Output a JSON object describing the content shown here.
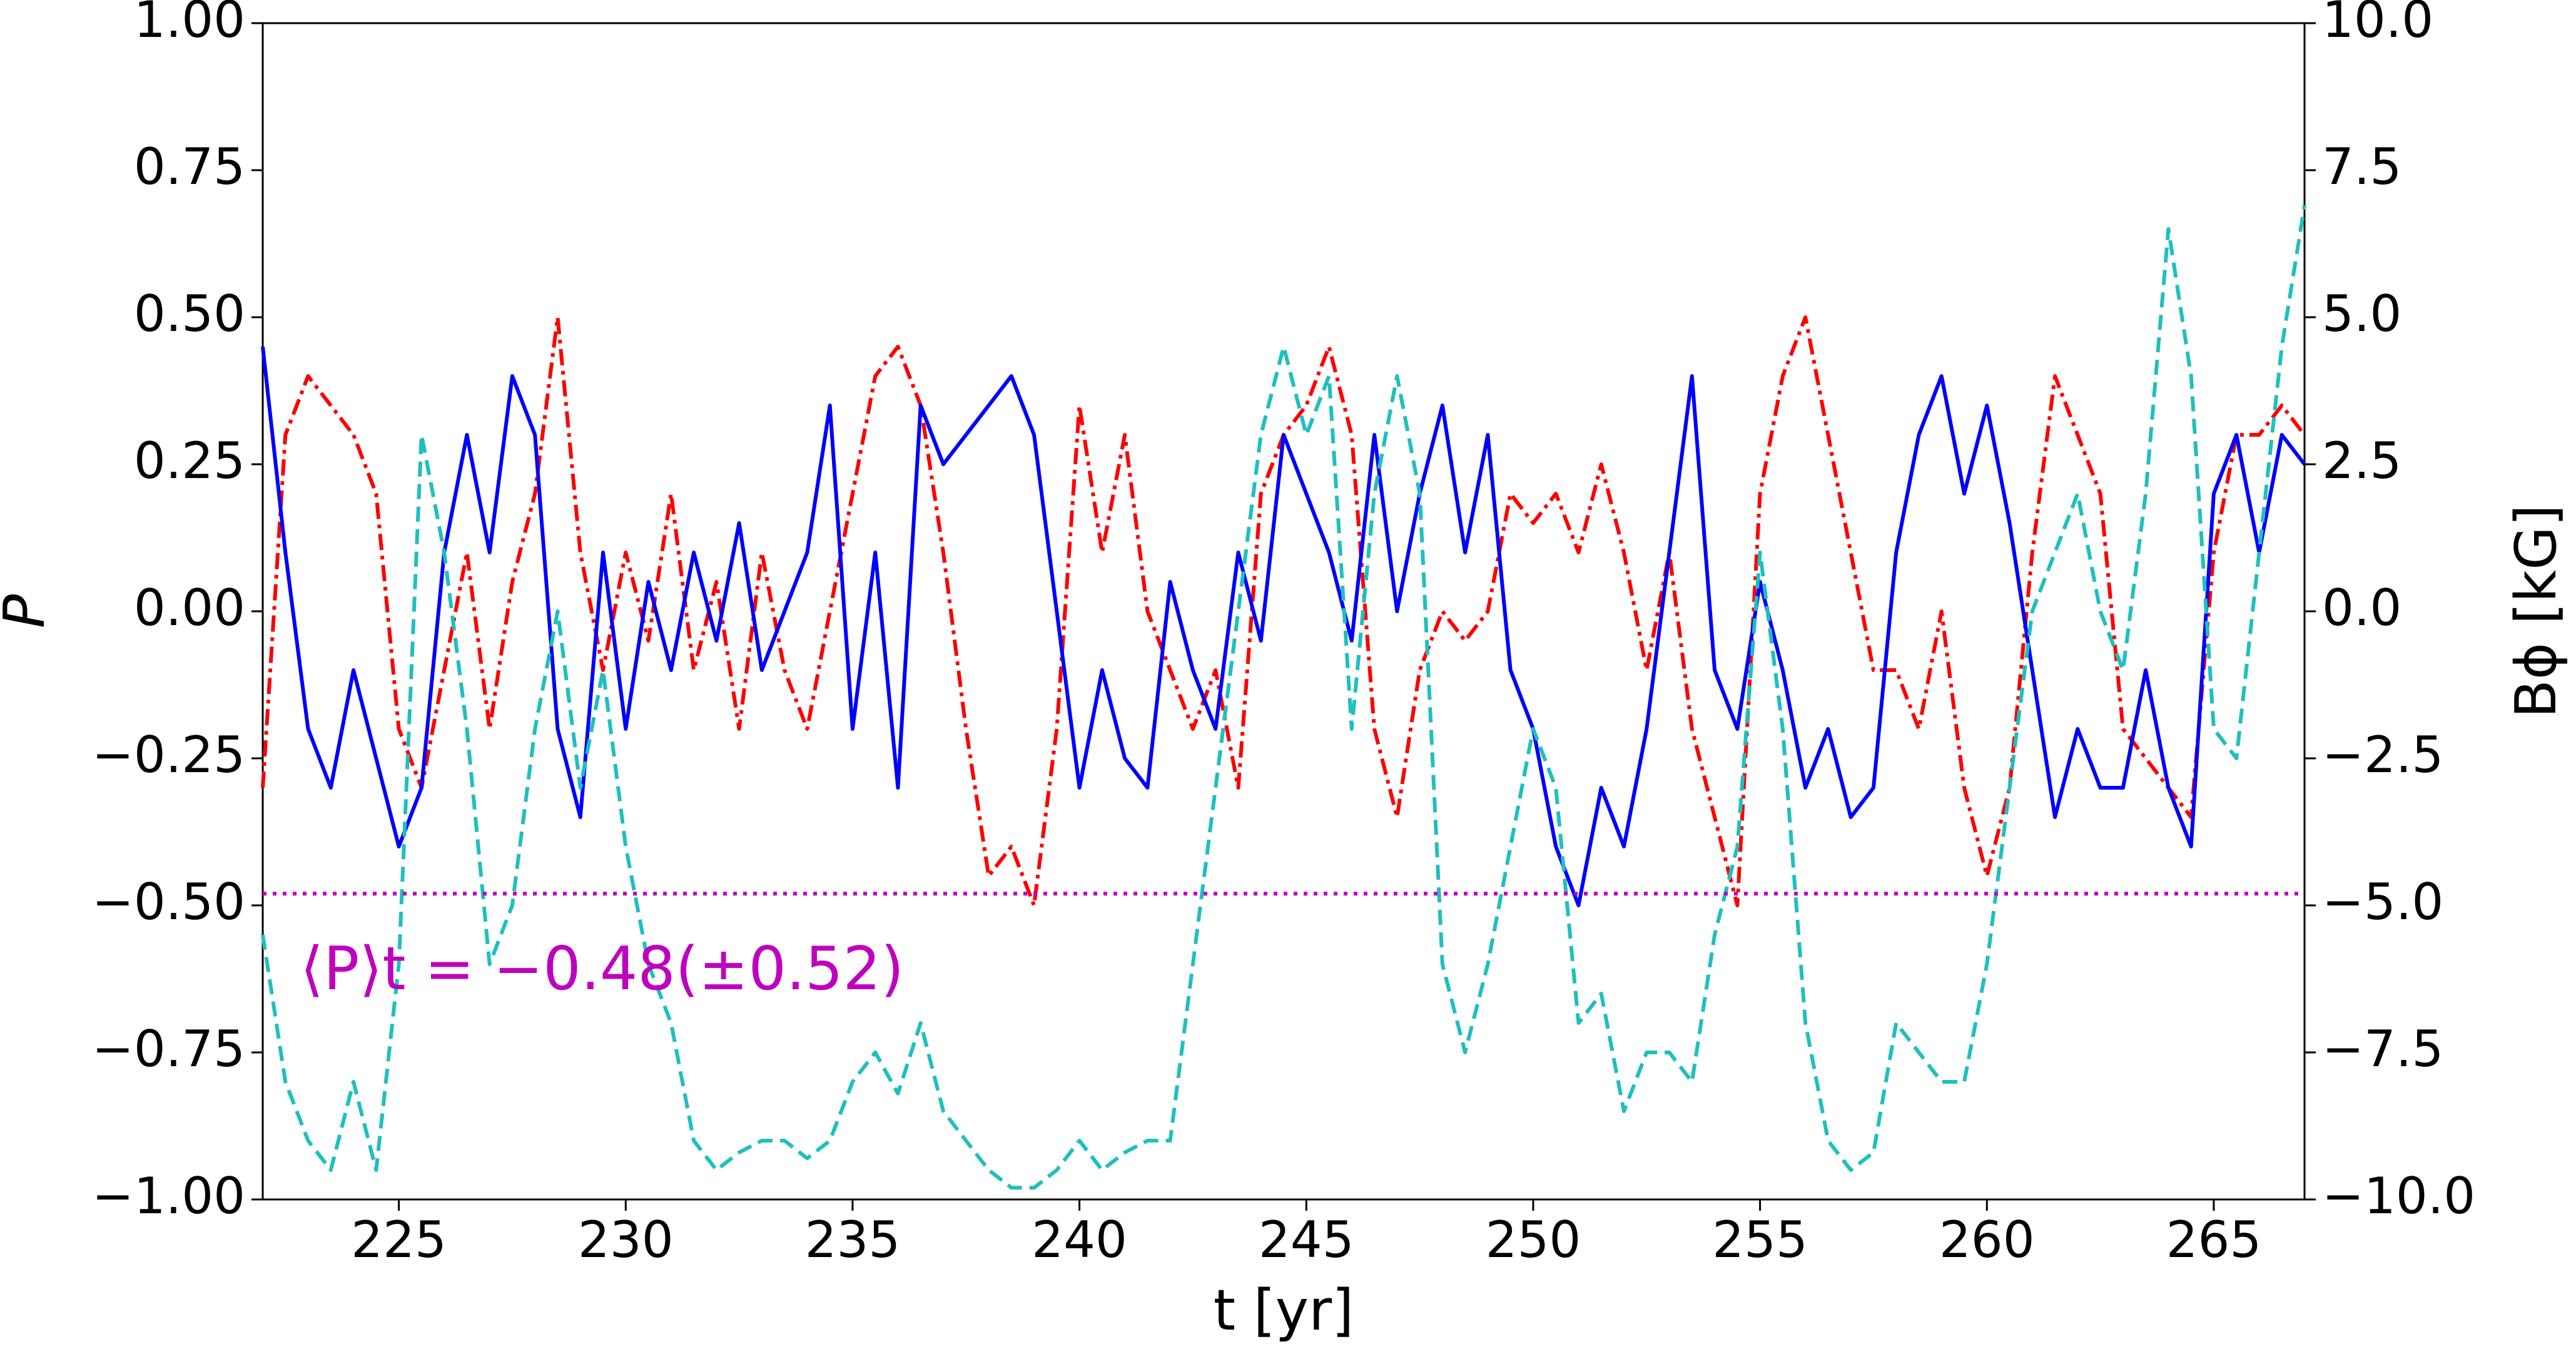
{
  "chart_data": {
    "type": "line",
    "xlabel": "t [yr]",
    "ylabel": "P",
    "y2label": "Bϕ [kG]",
    "annotation": "⟨P⟩t = −0.48(±0.52)",
    "hline": {
      "value": -0.48,
      "color": "#bf00bf",
      "linestyle": "dotted"
    },
    "xlim": [
      222,
      267
    ],
    "ylim": [
      -1,
      1
    ],
    "y2lim": [
      -10,
      10
    ],
    "xticks": [
      225,
      230,
      235,
      240,
      245,
      250,
      255,
      260,
      265
    ],
    "yticks": [
      {
        "value": -1,
        "label": "−1.00"
      },
      {
        "value": -0.75,
        "label": "−0.75"
      },
      {
        "value": -0.5,
        "label": "−0.50"
      },
      {
        "value": -0.25,
        "label": "−0.25"
      },
      {
        "value": 0,
        "label": "0.00"
      },
      0.25,
      {
        "value": 0.5,
        "label": "0.50"
      },
      0.75,
      {
        "value": 1,
        "label": "1.00"
      }
    ],
    "y2ticks": [
      {
        "value": -10,
        "label": "−10.0"
      },
      {
        "value": -7.5,
        "label": "−7.5"
      },
      {
        "value": -5,
        "label": "−5.0"
      },
      {
        "value": -2.5,
        "label": "−2.5"
      },
      {
        "value": 0,
        "label": "0.0"
      },
      2.5,
      {
        "value": 5,
        "label": "5.0"
      },
      7.5,
      {
        "value": 10,
        "label": "10.0"
      }
    ],
    "x": [
      222,
      222.5,
      223,
      223.5,
      224,
      224.5,
      225,
      225.5,
      226,
      226.5,
      227,
      227.5,
      228,
      228.5,
      229,
      229.5,
      230,
      230.5,
      231,
      231.5,
      232,
      232.5,
      233,
      233.5,
      234,
      234.5,
      235,
      235.5,
      236,
      236.5,
      237,
      237.5,
      238,
      238.5,
      239,
      239.5,
      240,
      240.5,
      241,
      241.5,
      242,
      242.5,
      243,
      243.5,
      244,
      244.5,
      245,
      245.5,
      246,
      246.5,
      247,
      247.5,
      248,
      248.5,
      249,
      249.5,
      250,
      250.5,
      251,
      251.5,
      252,
      252.5,
      253,
      253.5,
      254,
      254.5,
      255,
      255.5,
      256,
      256.5,
      257,
      257.5,
      258,
      258.5,
      259,
      259.5,
      260,
      260.5,
      261,
      261.5,
      262,
      262.5,
      263,
      263.5,
      264,
      264.5,
      265,
      265.5,
      266,
      266.5,
      267
    ],
    "series": [
      {
        "color": "#ff0000",
        "linestyle": "dashdot",
        "values": [
          -0.3,
          0.3,
          0.4,
          0.35,
          0.3,
          0.2,
          -0.2,
          -0.3,
          -0.1,
          0.1,
          -0.2,
          0.05,
          0.2,
          0.5,
          0.1,
          -0.1,
          0.1,
          -0.05,
          0.2,
          -0.1,
          0.05,
          -0.2,
          0.1,
          -0.1,
          -0.2,
          0.0,
          0.2,
          0.4,
          0.45,
          0.35,
          0.1,
          -0.2,
          -0.45,
          -0.4,
          -0.5,
          -0.2,
          0.35,
          0.1,
          0.3,
          0.0,
          -0.1,
          -0.2,
          -0.1,
          -0.3,
          0.2,
          0.3,
          0.35,
          0.45,
          0.3,
          -0.2,
          -0.35,
          -0.1,
          0.0,
          -0.05,
          0.0,
          0.2,
          0.15,
          0.2,
          0.1,
          0.25,
          0.1,
          -0.1,
          0.1,
          -0.2,
          -0.35,
          -0.5,
          0.2,
          0.4,
          0.5,
          0.3,
          0.1,
          -0.1,
          -0.1,
          -0.2,
          0.0,
          -0.3,
          -0.45,
          -0.3,
          0.1,
          0.4,
          0.3,
          0.2,
          -0.2,
          -0.25,
          -0.3,
          -0.35,
          0.1,
          0.3,
          0.3,
          0.35,
          0.3
        ]
      },
      {
        "color": "#0000ff",
        "linestyle": "solid",
        "values": [
          0.45,
          0.1,
          -0.2,
          -0.3,
          -0.1,
          -0.25,
          -0.4,
          -0.3,
          0.1,
          0.3,
          0.1,
          0.4,
          0.3,
          -0.2,
          -0.35,
          0.1,
          -0.2,
          0.05,
          -0.1,
          0.1,
          -0.05,
          0.15,
          -0.1,
          0.0,
          0.1,
          0.35,
          -0.2,
          0.1,
          -0.3,
          0.35,
          0.25,
          0.3,
          0.35,
          0.4,
          0.3,
          0.0,
          -0.3,
          -0.1,
          -0.25,
          -0.3,
          0.05,
          -0.1,
          -0.2,
          0.1,
          -0.05,
          0.3,
          0.2,
          0.1,
          -0.05,
          0.3,
          0.0,
          0.2,
          0.35,
          0.1,
          0.3,
          -0.1,
          -0.2,
          -0.4,
          -0.5,
          -0.3,
          -0.4,
          -0.2,
          0.1,
          0.4,
          -0.1,
          -0.2,
          0.05,
          -0.1,
          -0.3,
          -0.2,
          -0.35,
          -0.3,
          0.1,
          0.3,
          0.4,
          0.2,
          0.35,
          0.15,
          -0.1,
          -0.35,
          -0.2,
          -0.3,
          -0.3,
          -0.1,
          -0.3,
          -0.4,
          0.2,
          0.3,
          0.1,
          0.3,
          0.25
        ]
      },
      {
        "color": "#1fbfbf",
        "linestyle": "dashed",
        "axis": "y2",
        "values": [
          -5.5,
          -8,
          -9,
          -9.5,
          -8,
          -9.5,
          -6,
          3,
          1,
          -2,
          -6,
          -5,
          -2,
          0,
          -3,
          -1,
          -4,
          -6,
          -7,
          -9,
          -9.5,
          -9.2,
          -9,
          -9,
          -9.3,
          -9,
          -8,
          -7.5,
          -8.2,
          -7,
          -8.5,
          -9,
          -9.5,
          -9.8,
          -9.8,
          -9.5,
          -9,
          -9.5,
          -9.2,
          -9,
          -9,
          -6,
          -3,
          0,
          3,
          4.5,
          3,
          4,
          -2,
          2,
          4,
          2,
          -6,
          -7.5,
          -6,
          -4,
          -2,
          -3,
          -7,
          -6.5,
          -8.5,
          -7.5,
          -7.5,
          -8,
          -5.5,
          -4,
          1,
          -2,
          -7,
          -9,
          -9.5,
          -9.2,
          -7,
          -7.5,
          -8,
          -8,
          -6,
          -3,
          0,
          1,
          2,
          0,
          -1,
          2,
          6.5,
          4,
          -2,
          -2.5,
          1,
          4.5,
          6.9
        ]
      }
    ]
  }
}
